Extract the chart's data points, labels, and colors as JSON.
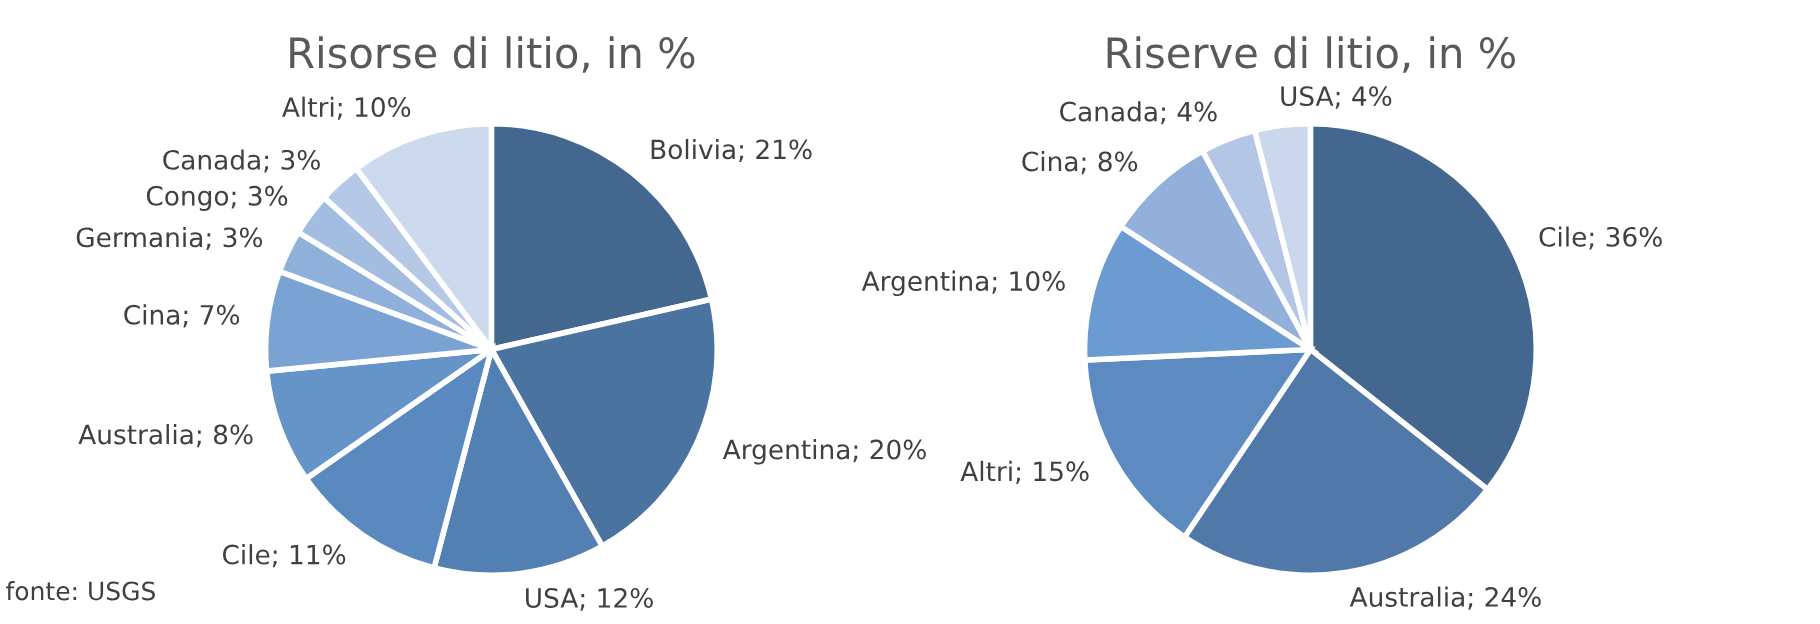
{
  "chart_data": [
    {
      "type": "pie",
      "title": "Risorse di litio, in %",
      "categories": [
        "Bolivia",
        "Argentina",
        "USA",
        "Cile",
        "Australia",
        "Cina",
        "Germania",
        "Congo",
        "Canada",
        "Altri"
      ],
      "values": [
        21,
        20,
        12,
        11,
        8,
        7,
        3,
        3,
        3,
        10
      ],
      "value_labels": [
        "21%",
        "20%",
        "12%",
        "11%",
        "8%",
        "7%",
        "3%",
        "3%",
        "3%",
        "10%"
      ],
      "colors": [
        "#44678f",
        "#4a73a0",
        "#5380b3",
        "#5a89bf",
        "#6594c8",
        "#7aa3d3",
        "#8fb0da",
        "#a3bde0",
        "#b5c9e6",
        "#cdd9ec"
      ],
      "annotations": [
        "fonte: USGS"
      ]
    },
    {
      "type": "pie",
      "title": "Riserve di litio, in %",
      "categories": [
        "Cile",
        "Australia",
        "Altri",
        "Argentina",
        "Cina",
        "Canada",
        "USA"
      ],
      "values": [
        36,
        24,
        15,
        10,
        8,
        4,
        4
      ],
      "value_labels": [
        "36%",
        "24%",
        "15%",
        "10%",
        "8%",
        "4%",
        "4%"
      ],
      "colors": [
        "#44678f",
        "#5079aa",
        "#5d8bc1",
        "#6c9bd2",
        "#92b0da",
        "#b3c6e6",
        "#cad7ec"
      ]
    }
  ]
}
